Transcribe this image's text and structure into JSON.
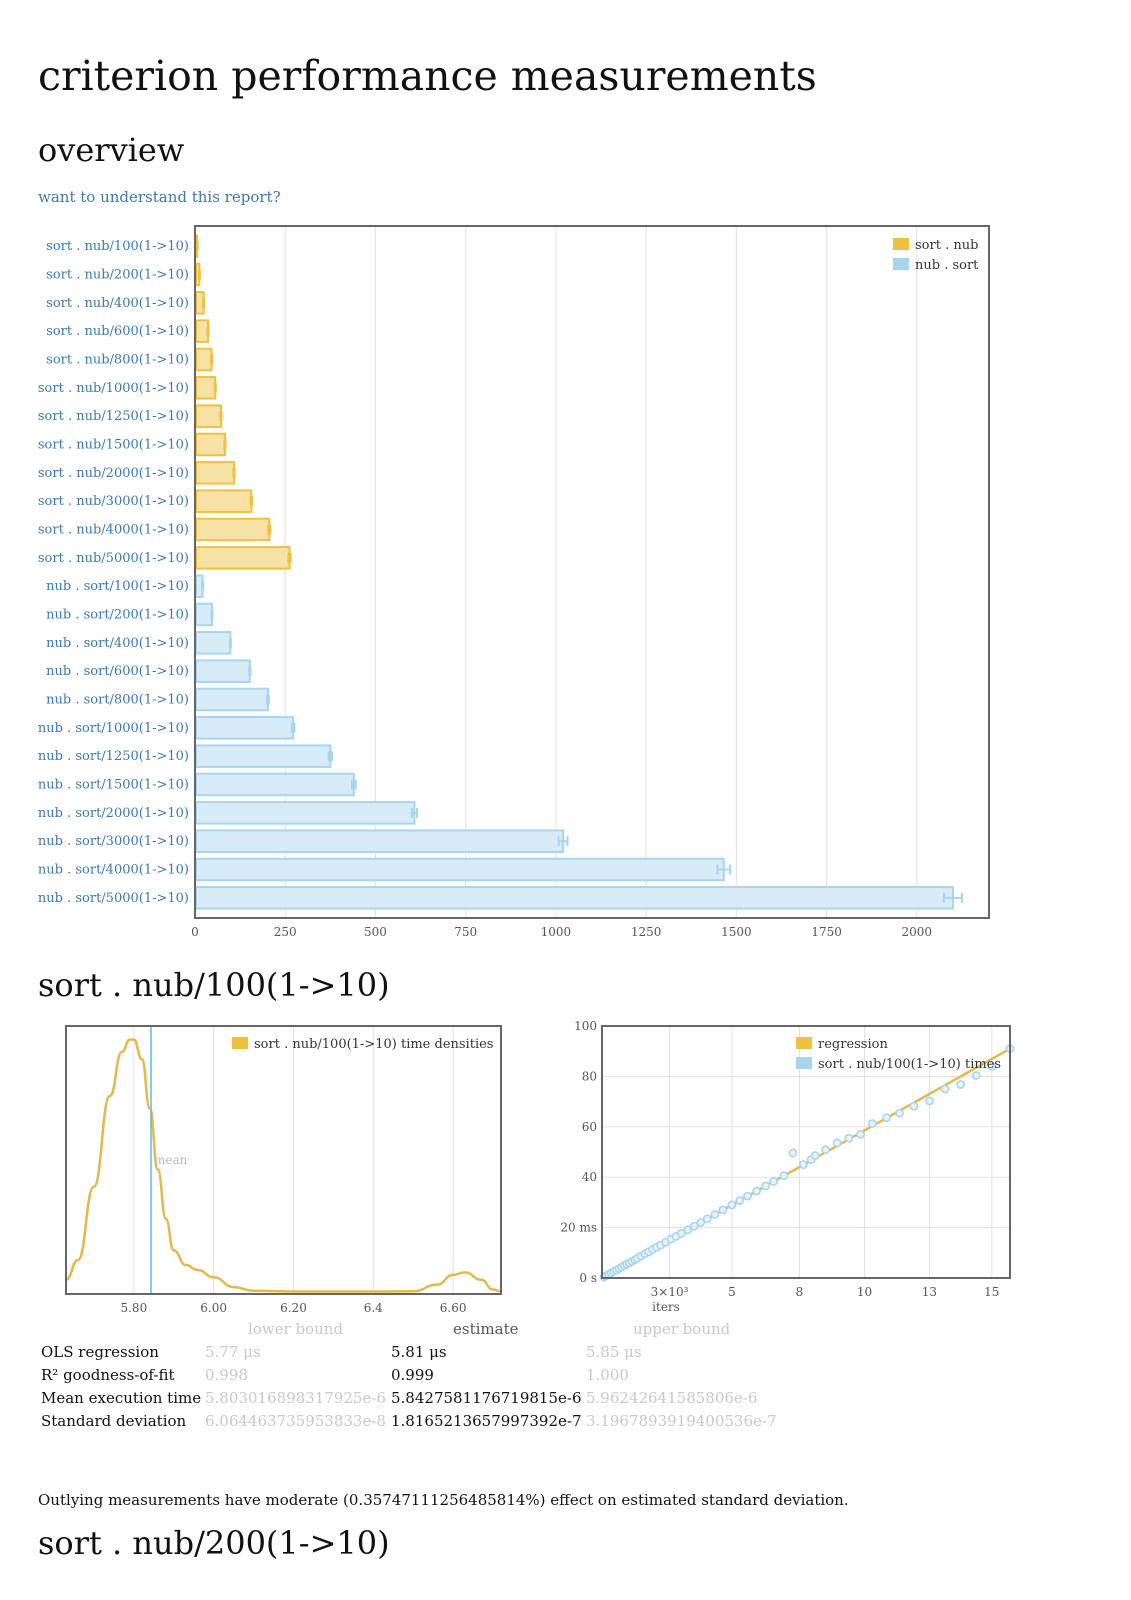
{
  "title": "criterion performance measurements",
  "overview_heading": "overview",
  "understand_link": "want to understand this report?",
  "colors": {
    "yellow": "#f0c040",
    "yellow_fill": "#f7e2a6",
    "blue": "#a9d4f0",
    "blue_fill": "#d8ecf8",
    "link": "#3a79b0"
  },
  "chart_data": [
    {
      "type": "bar",
      "orientation": "horizontal",
      "categories": [
        "sort . nub/100(1->10)",
        "sort . nub/200(1->10)",
        "sort . nub/400(1->10)",
        "sort . nub/600(1->10)",
        "sort . nub/800(1->10)",
        "sort . nub/1000(1->10)",
        "sort . nub/1250(1->10)",
        "sort . nub/1500(1->10)",
        "sort . nub/2000(1->10)",
        "sort . nub/3000(1->10)",
        "sort . nub/4000(1->10)",
        "sort . nub/5000(1->10)",
        "nub . sort/100(1->10)",
        "nub . sort/200(1->10)",
        "nub . sort/400(1->10)",
        "nub . sort/600(1->10)",
        "nub . sort/800(1->10)",
        "nub . sort/1000(1->10)",
        "nub . sort/1250(1->10)",
        "nub . sort/1500(1->10)",
        "nub . sort/2000(1->10)",
        "nub . sort/3000(1->10)",
        "nub . sort/4000(1->10)",
        "nub . sort/5000(1->10)"
      ],
      "series": [
        {
          "name": "sort . nub",
          "color": "yellow",
          "values": [
            6,
            12,
            24,
            36,
            46,
            56,
            72,
            83,
            108,
            156,
            206,
            262,
            null,
            null,
            null,
            null,
            null,
            null,
            null,
            null,
            null,
            null,
            null,
            null
          ]
        },
        {
          "name": "nub . sort",
          "color": "blue",
          "values": [
            null,
            null,
            null,
            null,
            null,
            null,
            null,
            null,
            null,
            null,
            null,
            null,
            21,
            47,
            98,
            152,
            202,
            272,
            375,
            440,
            608,
            1020,
            1465,
            2100
          ]
        }
      ],
      "xlim": [
        0,
        2200
      ],
      "xticks": [
        0,
        250,
        500,
        750,
        1000,
        1250,
        1500,
        1750,
        2000
      ],
      "grid": true,
      "legend_position": "top-right"
    },
    {
      "type": "line",
      "subtype": "density",
      "series": [
        {
          "name": "sort . nub/100(1->10) time densities",
          "color": "yellow",
          "x": [
            5.63,
            5.66,
            5.7,
            5.74,
            5.77,
            5.79,
            5.8,
            5.82,
            5.84,
            5.86,
            5.88,
            5.9,
            5.93,
            5.96,
            6.0,
            6.05,
            6.1,
            6.2,
            6.3,
            6.4,
            6.5,
            6.56,
            6.6,
            6.63,
            6.67,
            6.7,
            6.72
          ],
          "y": [
            0.05,
            0.13,
            0.43,
            0.8,
            0.98,
            1.03,
            1.03,
            0.95,
            0.75,
            0.5,
            0.3,
            0.17,
            0.11,
            0.09,
            0.06,
            0.02,
            0.005,
            0.002,
            0.002,
            0.002,
            0.003,
            0.03,
            0.07,
            0.08,
            0.05,
            0.01,
            0.003
          ]
        }
      ],
      "mean": 5.843,
      "mean_label": "mean",
      "xlim": [
        5.63,
        6.72
      ],
      "xticks": [
        "5.80",
        "6.00",
        "6.20",
        "6.4",
        "6.60"
      ],
      "xtick_values": [
        5.8,
        6.0,
        6.2,
        6.4,
        6.6
      ],
      "grid": true,
      "legend_position": "top-right"
    },
    {
      "type": "scatter",
      "series": [
        {
          "name": "regression",
          "color": "yellow",
          "x": [
            0,
            15.7
          ],
          "y": [
            0,
            91
          ]
        },
        {
          "name": "sort . nub/100(1->10) times",
          "color": "blue",
          "x": [
            0.08,
            0.15,
            0.25,
            0.35,
            0.45,
            0.55,
            0.65,
            0.75,
            0.85,
            0.95,
            1.05,
            1.15,
            1.25,
            1.35,
            1.5,
            1.65,
            1.8,
            1.95,
            2.1,
            2.25,
            2.45,
            2.65,
            2.85,
            3.05,
            3.3,
            3.55,
            3.8,
            4.05,
            4.35,
            4.65,
            5.0,
            5.3,
            5.6,
            5.95,
            6.3,
            6.6,
            7.0,
            7.35,
            7.75,
            8.05,
            8.2,
            8.6,
            9.05,
            9.5,
            9.95,
            10.4,
            10.95,
            11.45,
            12.0,
            12.6,
            13.2,
            13.8,
            14.4,
            15.0,
            15.7
          ],
          "y": [
            0.4,
            0.9,
            1.4,
            2.0,
            2.6,
            3.1,
            3.7,
            4.3,
            4.9,
            5.5,
            6.0,
            6.6,
            7.2,
            7.8,
            8.7,
            9.6,
            10.4,
            11.3,
            12.2,
            13.0,
            14.2,
            15.4,
            16.5,
            17.7,
            19.1,
            20.6,
            22.0,
            23.5,
            25.2,
            27.0,
            29.0,
            30.7,
            32.5,
            34.5,
            36.5,
            38.3,
            40.6,
            49.6,
            45.0,
            47.0,
            48.6,
            50.9,
            53.6,
            55.5,
            57.0,
            61.3,
            63.6,
            65.4,
            68.2,
            70.3,
            75.0,
            76.8,
            80.4,
            84.0,
            91.0
          ]
        }
      ],
      "xlabel": "iters",
      "xticks": [
        "3×10³",
        "5",
        "8",
        "10",
        "13",
        "15"
      ],
      "xtick_values": [
        2.6,
        5,
        7.6,
        10.1,
        12.6,
        15
      ],
      "ylim": [
        0,
        100
      ],
      "yticks": [
        "0 s",
        "20 ms",
        "40",
        "60",
        "80",
        "100"
      ],
      "ytick_values": [
        0,
        20,
        40,
        60,
        80,
        100
      ],
      "grid": true,
      "legend_position": "top-right"
    }
  ],
  "bench1": {
    "heading": "sort . nub/100(1->10)",
    "table": {
      "headers": {
        "lower": "lower bound",
        "estimate": "estimate",
        "upper": "upper bound"
      },
      "rows": [
        {
          "label": "OLS regression",
          "lower": "5.77 μs",
          "estimate": "5.81 μs",
          "upper": "5.85 μs"
        },
        {
          "label": "R² goodness-of-fit",
          "lower": "0.998",
          "estimate": "0.999",
          "upper": "1.000"
        },
        {
          "label": "Mean execution time",
          "lower": "5.803016898317925e-6",
          "estimate": "5.8427581176719815e-6",
          "upper": "5.96242641585806e-6"
        },
        {
          "label": "Standard deviation",
          "lower": "6.064463735953833e-8",
          "estimate": "1.8165213657997392e-7",
          "upper": "3.1967893919400536e-7"
        }
      ]
    },
    "outlier_text": "Outlying measurements have moderate (0.35747111256485814%) effect on estimated standard deviation."
  },
  "bench2": {
    "heading": "sort . nub/200(1->10)"
  }
}
